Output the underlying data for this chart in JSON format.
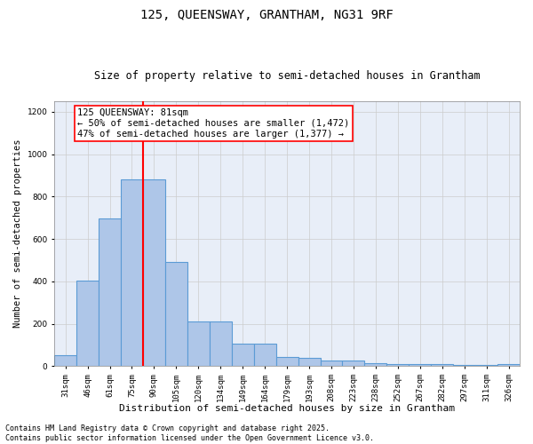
{
  "title1": "125, QUEENSWAY, GRANTHAM, NG31 9RF",
  "title2": "Size of property relative to semi-detached houses in Grantham",
  "xlabel": "Distribution of semi-detached houses by size in Grantham",
  "ylabel": "Number of semi-detached properties",
  "categories": [
    "31sqm",
    "46sqm",
    "61sqm",
    "75sqm",
    "90sqm",
    "105sqm",
    "120sqm",
    "134sqm",
    "149sqm",
    "164sqm",
    "179sqm",
    "193sqm",
    "208sqm",
    "223sqm",
    "238sqm",
    "252sqm",
    "267sqm",
    "282sqm",
    "297sqm",
    "311sqm",
    "326sqm"
  ],
  "values": [
    50,
    405,
    695,
    880,
    880,
    490,
    210,
    210,
    105,
    105,
    45,
    40,
    28,
    25,
    15,
    10,
    10,
    10,
    5,
    5,
    10
  ],
  "bar_color": "#aec6e8",
  "bar_edge_color": "#5b9bd5",
  "bar_linewidth": 0.8,
  "vline_x": 3.5,
  "vline_color": "red",
  "vline_linewidth": 1.5,
  "annotation_box_text": "125 QUEENSWAY: 81sqm\n← 50% of semi-detached houses are smaller (1,472)\n47% of semi-detached houses are larger (1,377) →",
  "ylim": [
    0,
    1250
  ],
  "yticks": [
    0,
    200,
    400,
    600,
    800,
    1000,
    1200
  ],
  "grid_color": "#cccccc",
  "background_color": "#e8eef8",
  "footer_text": "Contains HM Land Registry data © Crown copyright and database right 2025.\nContains public sector information licensed under the Open Government Licence v3.0.",
  "title1_fontsize": 10,
  "title2_fontsize": 8.5,
  "xlabel_fontsize": 8,
  "ylabel_fontsize": 7.5,
  "tick_fontsize": 6.5,
  "footer_fontsize": 6,
  "annotation_fontsize": 7.5
}
